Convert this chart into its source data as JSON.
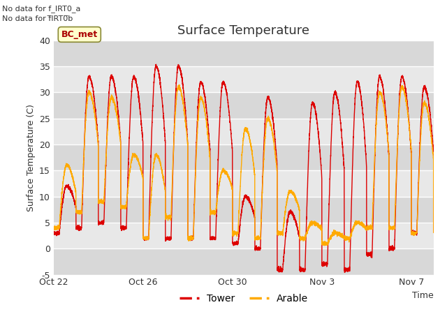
{
  "title": "Surface Temperature",
  "xlabel": "Time",
  "ylabel": "Surface Temperature (C)",
  "ylim": [
    -5,
    40
  ],
  "yticks": [
    -5,
    0,
    5,
    10,
    15,
    20,
    25,
    30,
    35,
    40
  ],
  "x_tick_labels": [
    "Oct 22",
    "Oct 26",
    "Oct 30",
    "Nov 3",
    "Nov 7"
  ],
  "top_text_1": "No data for f_IRT0_a",
  "top_text_2": "No data for f̅IRT0̅b",
  "legend_label_box": "BC_met",
  "legend_box_bg": "#ffffcc",
  "legend_box_border": "#888833",
  "tower_color": "#dd0000",
  "arable_color": "#ffaa00",
  "fig_bg": "#ffffff",
  "plot_bg_dark": "#d8d8d8",
  "plot_bg_light": "#e8e8e8",
  "grid_color": "#ffffff",
  "seed": 42,
  "n_days": 17,
  "points_per_day": 288
}
